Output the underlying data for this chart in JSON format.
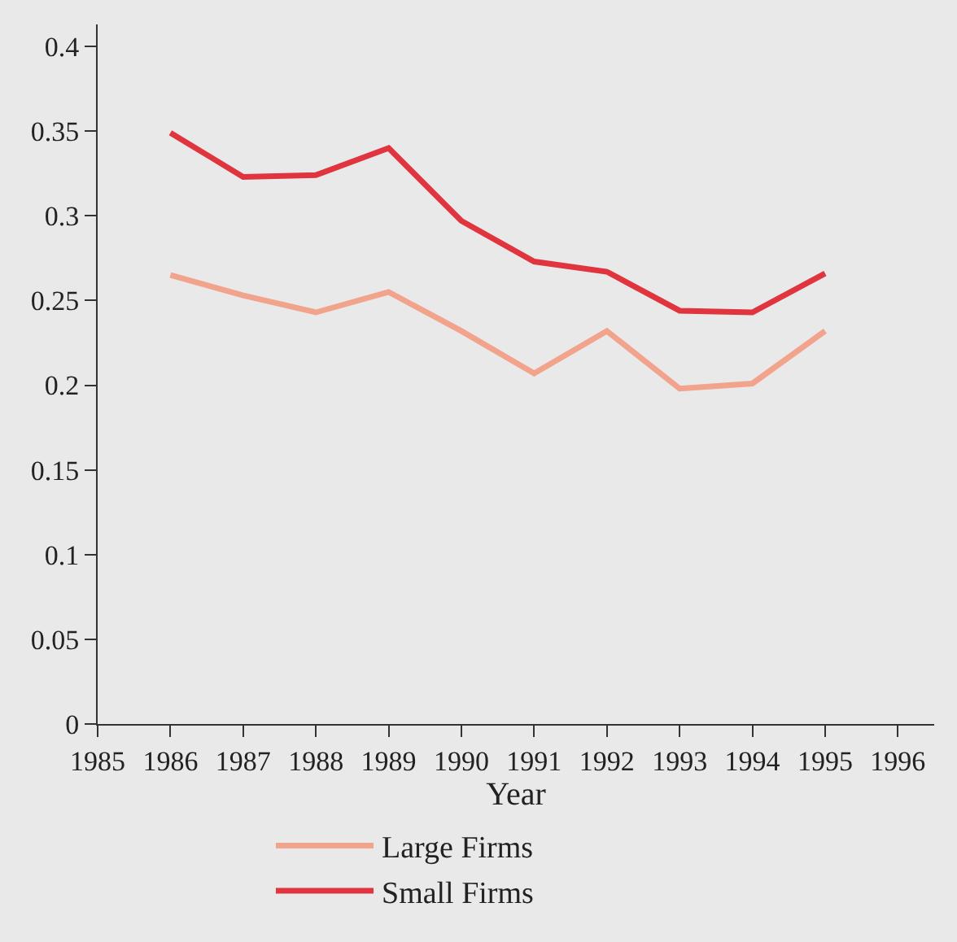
{
  "chart_data": {
    "type": "line",
    "xlabel": "Year",
    "x": [
      1986,
      1987,
      1988,
      1989,
      1990,
      1991,
      1992,
      1993,
      1994,
      1995
    ],
    "series": [
      {
        "name": "Large Firms",
        "color": "#f2a38c",
        "values": [
          0.265,
          0.253,
          0.243,
          0.255,
          0.232,
          0.207,
          0.232,
          0.198,
          0.201,
          0.232
        ]
      },
      {
        "name": "Small Firms",
        "color": "#e0353f",
        "values": [
          0.349,
          0.323,
          0.324,
          0.34,
          0.297,
          0.273,
          0.267,
          0.244,
          0.243,
          0.266
        ]
      }
    ],
    "xlim": [
      1985,
      1996.5
    ],
    "xticks": [
      1985,
      1986,
      1987,
      1988,
      1989,
      1990,
      1991,
      1992,
      1993,
      1994,
      1995,
      1996
    ],
    "ylim": [
      0,
      0.413
    ],
    "yticks": [
      0,
      0.05,
      0.1,
      0.15,
      0.2,
      0.25,
      0.3,
      0.35,
      0.4
    ],
    "grid": false,
    "legend": "bottom",
    "marker": "none",
    "line_style": "solid"
  }
}
